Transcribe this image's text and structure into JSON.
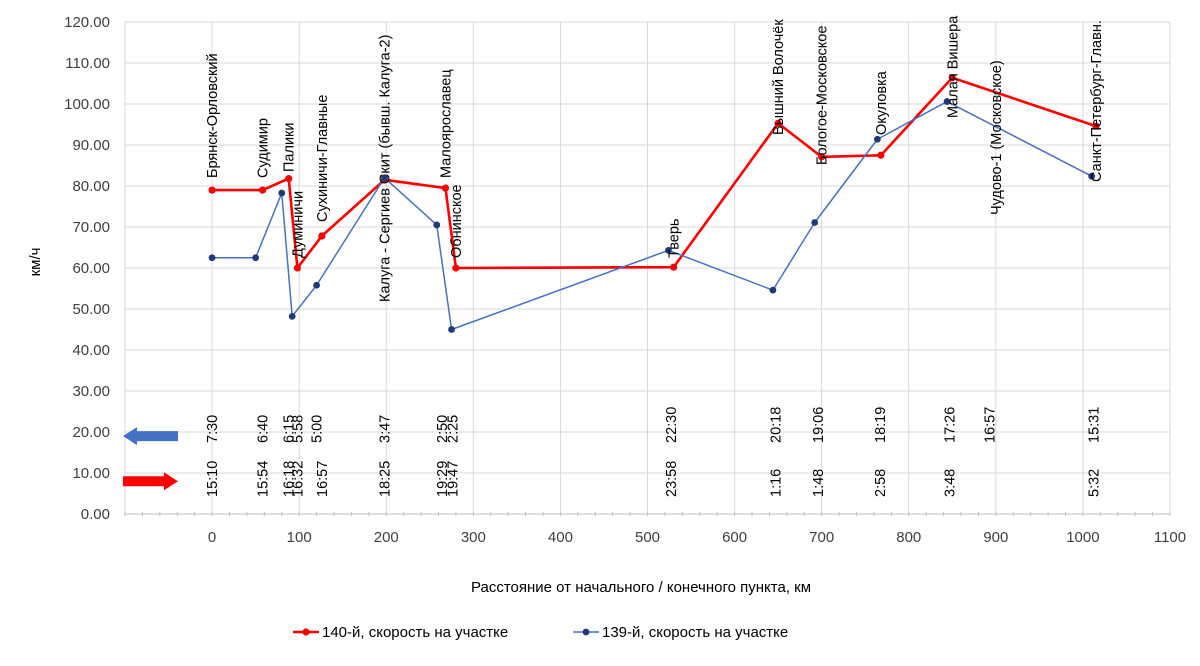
{
  "chart_data": {
    "type": "line",
    "xlabel": "Расстояние от начального / конечного пункта, км",
    "ylabel": "км/ч",
    "xlim": [
      0,
      1100
    ],
    "ylim": [
      0,
      120
    ],
    "x_ticks": [
      "0",
      "100",
      "200",
      "300",
      "400",
      "500",
      "600",
      "700",
      "800",
      "900",
      "1000",
      "1100"
    ],
    "y_ticks": [
      "0.00",
      "10.00",
      "20.00",
      "30.00",
      "40.00",
      "50.00",
      "60.00",
      "70.00",
      "80.00",
      "90.00",
      "100.00",
      "110.00",
      "120.00"
    ],
    "grid": true,
    "legend_position": "bottom",
    "series": [
      {
        "name": "140-й, скорость на участке",
        "color": "#ff0000",
        "x": [
          0,
          58,
          88,
          98,
          126,
          198,
          268,
          280,
          530,
          650,
          700,
          768,
          850,
          1015
        ],
        "y": [
          79,
          79,
          81.8,
          60,
          67.8,
          81.5,
          79.5,
          60,
          60.2,
          95.3,
          87.1,
          87.5,
          106.4,
          94.6
        ]
      },
      {
        "name": "139-й, скорость на участке",
        "color": "#1f3a7a",
        "x": [
          0,
          50,
          80,
          92,
          120,
          198,
          258,
          275,
          524,
          644,
          692,
          764,
          844,
          1010
        ],
        "y": [
          62.5,
          62.5,
          78.3,
          48.2,
          55.8,
          82,
          70.5,
          45,
          64.3,
          54.6,
          71.1,
          91.4,
          100.6,
          82.4
        ]
      }
    ],
    "station_labels": [
      {
        "text": "Брянск-Орловский",
        "x": 0
      },
      {
        "text": "Судимир",
        "x": 58
      },
      {
        "text": "Палики",
        "x": 88
      },
      {
        "text": "Думиничи",
        "x": 98
      },
      {
        "text": "Сухиничи-Главные",
        "x": 126
      },
      {
        "text": "Калуга - Сергиев Скит (бывш. Калуга-2)",
        "x": 198
      },
      {
        "text": "Малоярославец",
        "x": 268
      },
      {
        "text": "Обнинское",
        "x": 280
      },
      {
        "text": "Тверь",
        "x": 530
      },
      {
        "text": "Вышний Волочёк",
        "x": 650
      },
      {
        "text": "Бологое-Московское",
        "x": 700
      },
      {
        "text": "Окуловка",
        "x": 768
      },
      {
        "text": "Малая Вишера",
        "x": 850
      },
      {
        "text": "Чудово-1 (Московское)",
        "x": 900
      },
      {
        "text": "Санкт-Петербург-Главн.",
        "x": 1015
      }
    ],
    "times_139": [
      {
        "text": "7:30",
        "x": 0
      },
      {
        "text": "6:40",
        "x": 58
      },
      {
        "text": "6:15",
        "x": 88
      },
      {
        "text": "5:58",
        "x": 98
      },
      {
        "text": "5:00",
        "x": 120
      },
      {
        "text": "3:47",
        "x": 198
      },
      {
        "text": "2:50",
        "x": 264
      },
      {
        "text": "2:25",
        "x": 276
      },
      {
        "text": "22:30",
        "x": 527
      },
      {
        "text": "20:18",
        "x": 647
      },
      {
        "text": "19:06",
        "x": 696
      },
      {
        "text": "18:19",
        "x": 767
      },
      {
        "text": "17:26",
        "x": 847
      },
      {
        "text": "16:57",
        "x": 893
      },
      {
        "text": "15:31",
        "x": 1012
      }
    ],
    "times_140": [
      {
        "text": "15:10",
        "x": 0
      },
      {
        "text": "15:54",
        "x": 58
      },
      {
        "text": "16:18",
        "x": 88
      },
      {
        "text": "16:32",
        "x": 98
      },
      {
        "text": "16:57",
        "x": 126
      },
      {
        "text": "18:25",
        "x": 198
      },
      {
        "text": "19:29",
        "x": 264
      },
      {
        "text": "19:47",
        "x": 276
      },
      {
        "text": "23:58",
        "x": 527
      },
      {
        "text": "1:16",
        "x": 647
      },
      {
        "text": "1:48",
        "x": 696
      },
      {
        "text": "2:58",
        "x": 767
      },
      {
        "text": "3:48",
        "x": 847
      },
      {
        "text": "5:32",
        "x": 1012
      }
    ],
    "arrows": [
      {
        "name": "139-direction",
        "direction": "left",
        "color": "#4472c4",
        "level": 19
      },
      {
        "name": "140-direction",
        "direction": "right",
        "color": "#ff0000",
        "level": 8
      }
    ]
  }
}
